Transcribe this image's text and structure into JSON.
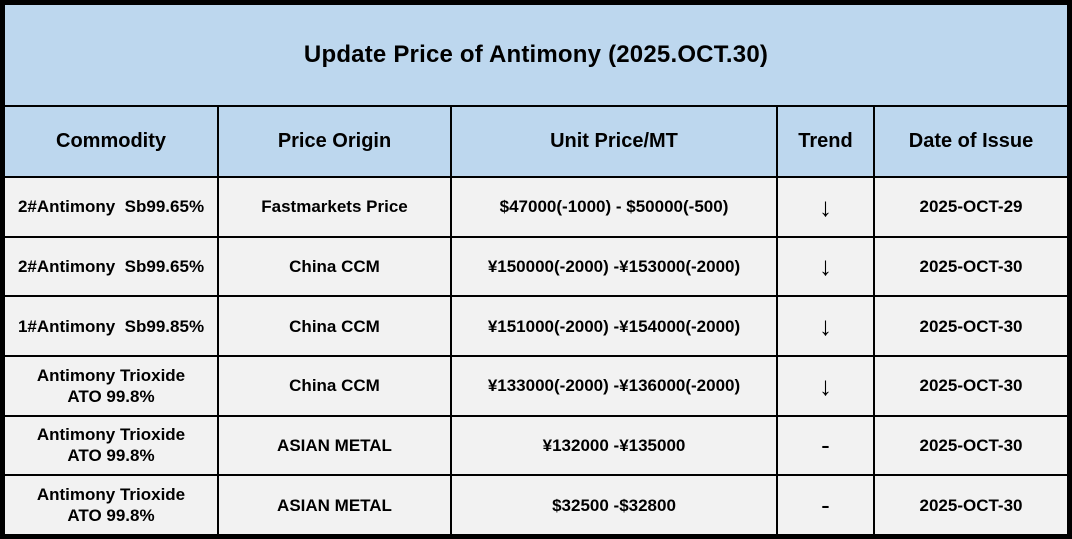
{
  "title": "Update Price of Antimony (2025.OCT.30)",
  "columns": {
    "commodity": "Commodity",
    "price_origin": "Price Origin",
    "unit_price": "Unit Price/MT",
    "trend": "Trend",
    "date_of_issue": "Date of Issue"
  },
  "rows": [
    {
      "commodity": "2#Antimony  Sb99.65%",
      "price_origin": "Fastmarkets Price",
      "unit_price": "$47000(-1000) - $50000(-500)",
      "trend": "↓",
      "date_of_issue": "2025-OCT-29"
    },
    {
      "commodity": "2#Antimony  Sb99.65%",
      "price_origin": "China CCM",
      "unit_price": "¥150000(-2000) -¥153000(-2000)",
      "trend": "↓",
      "date_of_issue": "2025-OCT-30"
    },
    {
      "commodity": "1#Antimony  Sb99.85%",
      "price_origin": "China CCM",
      "unit_price": "¥151000(-2000) -¥154000(-2000)",
      "trend": "↓",
      "date_of_issue": "2025-OCT-30"
    },
    {
      "commodity": "Antimony Trioxide\nATO 99.8%",
      "price_origin": "China CCM",
      "unit_price": "¥133000(-2000) -¥136000(-2000)",
      "trend": "↓",
      "date_of_issue": "2025-OCT-30"
    },
    {
      "commodity": "Antimony Trioxide\nATO 99.8%",
      "price_origin": "ASIAN METAL",
      "unit_price": "¥132000 -¥135000",
      "trend": "-",
      "date_of_issue": "2025-OCT-30"
    },
    {
      "commodity": "Antimony Trioxide\nATO 99.8%",
      "price_origin": "ASIAN METAL",
      "unit_price": "$32500 -$32800",
      "trend": "-",
      "date_of_issue": "2025-OCT-30"
    }
  ],
  "icons": {
    "trend_down": "down-arrow"
  },
  "colors": {
    "header_bg": "#BDD7EE",
    "row_bg": "#F2F2F2",
    "border": "#000000",
    "text": "#000000"
  }
}
